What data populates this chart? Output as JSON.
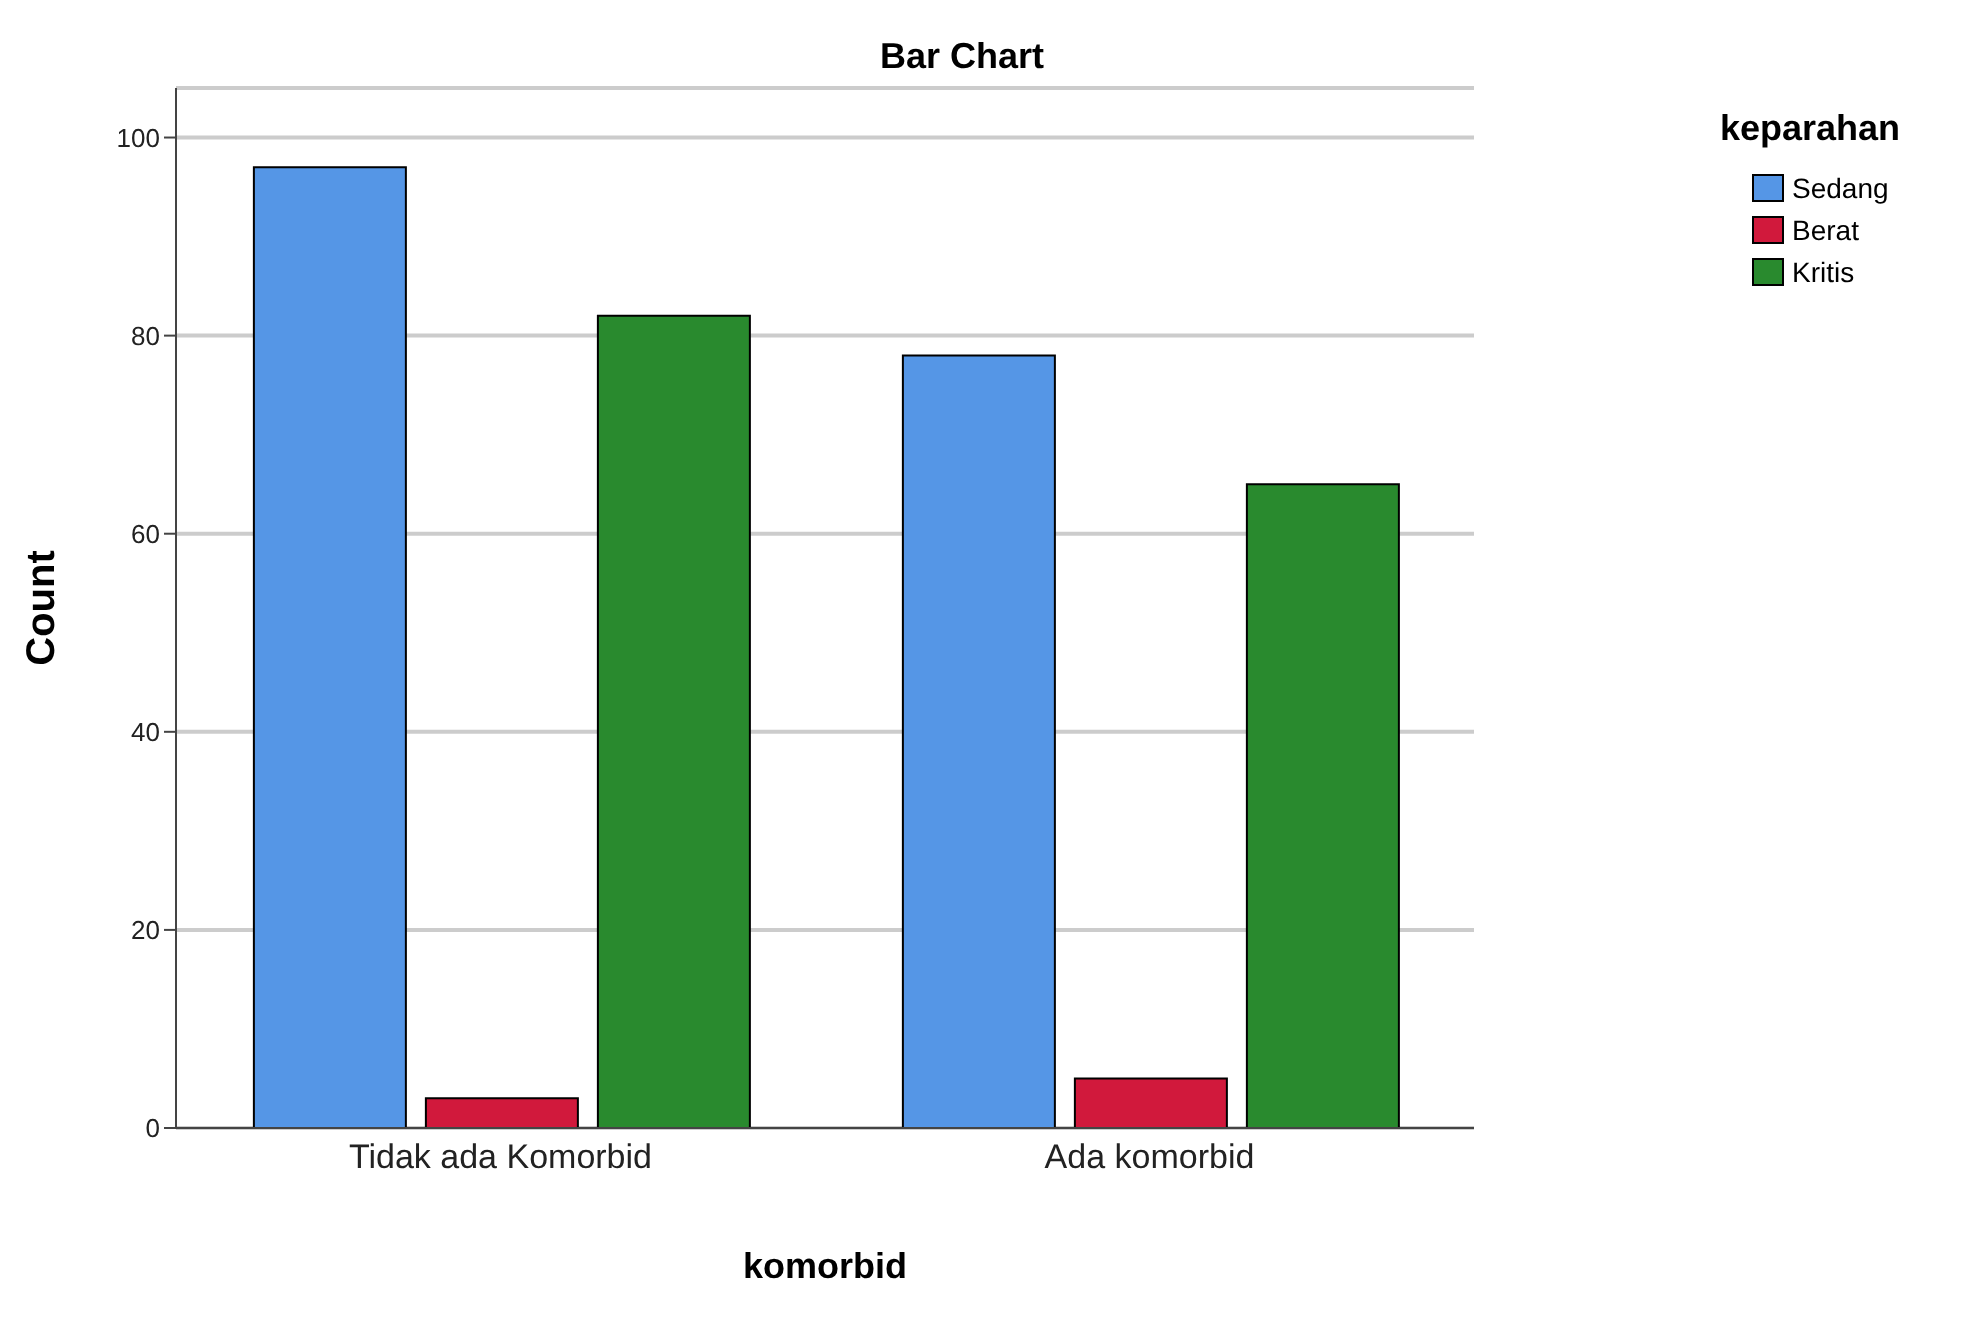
{
  "chart_data": {
    "type": "bar",
    "title": "Bar Chart",
    "xlabel": "komorbid",
    "ylabel": "Count",
    "legend_title": "keparahan",
    "categories": [
      "Tidak ada Komorbid",
      "Ada komorbid"
    ],
    "series": [
      {
        "name": "Sedang",
        "color": "#5596e6",
        "values": [
          97,
          78
        ]
      },
      {
        "name": "Berat",
        "color": "#d1193c",
        "values": [
          3,
          5
        ]
      },
      {
        "name": "Kritis",
        "color": "#298a2e",
        "values": [
          82,
          65
        ]
      }
    ],
    "ylim": [
      0,
      105
    ],
    "yticks": [
      0,
      20,
      40,
      60,
      80,
      100
    ],
    "grid": "y",
    "legend": "top right"
  }
}
